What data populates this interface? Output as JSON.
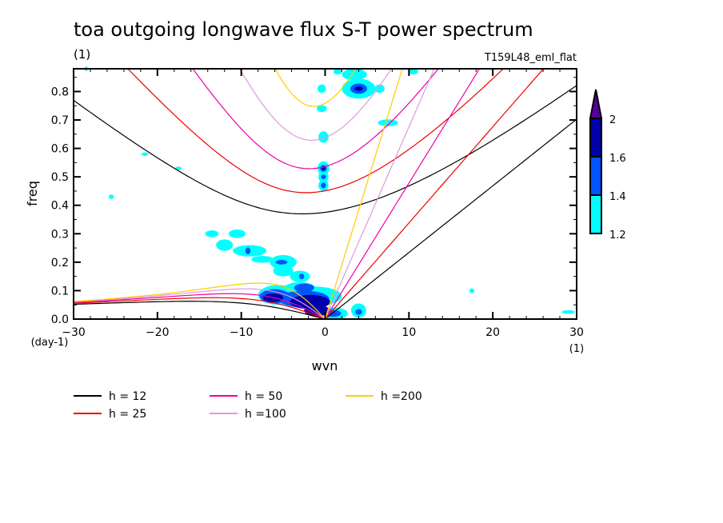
{
  "chart_data": {
    "type": "heatmap",
    "title": "toa outgoing longwave flux S-T power spectrum",
    "subtitle_left": "(1)",
    "subtitle_right": "T159L48_eml_flat",
    "xlabel": "wvn",
    "ylabel": "freq",
    "x_unit": "(1)",
    "y_unit": "(day-1)",
    "xlim": [
      -30,
      30
    ],
    "ylim": [
      0.0,
      0.88
    ],
    "x_ticks": [
      -30,
      -20,
      -10,
      0,
      10,
      20,
      30
    ],
    "x_tick_labels": [
      "−30",
      "−20",
      "−10",
      "0",
      "10",
      "20",
      "30"
    ],
    "y_ticks": [
      0.0,
      0.1,
      0.2,
      0.3,
      0.4,
      0.5,
      0.6,
      0.7,
      0.8
    ],
    "y_tick_labels": [
      "0.0",
      "0.1",
      "0.2",
      "0.3",
      "0.4",
      "0.5",
      "0.6",
      "0.7",
      "0.8"
    ],
    "colorbar": {
      "levels": [
        1.2,
        1.4,
        1.6,
        2
      ],
      "level_labels": [
        "1.2",
        "1.4",
        "1.6",
        "2"
      ],
      "colors": [
        "#00ffff",
        "#0055ff",
        "#0000aa",
        "#550099"
      ],
      "extend": "max"
    },
    "contour_blobs": [
      {
        "x": -1.5,
        "y": 0.08,
        "rx": 3.5,
        "ry": 0.035,
        "level": 1
      },
      {
        "x": -2.5,
        "y": 0.07,
        "rx": 3.0,
        "ry": 0.03,
        "level": 2
      },
      {
        "x": -1.8,
        "y": 0.06,
        "rx": 2.4,
        "ry": 0.025,
        "level": 3
      },
      {
        "x": -5.5,
        "y": 0.085,
        "rx": 2.5,
        "ry": 0.035,
        "level": 1
      },
      {
        "x": -6.0,
        "y": 0.08,
        "rx": 1.8,
        "ry": 0.025,
        "level": 2
      },
      {
        "x": -6.2,
        "y": 0.075,
        "rx": 1.2,
        "ry": 0.015,
        "level": 3
      },
      {
        "x": -3.0,
        "y": 0.11,
        "rx": 1.8,
        "ry": 0.02,
        "level": 1
      },
      {
        "x": -2.5,
        "y": 0.11,
        "rx": 1.2,
        "ry": 0.015,
        "level": 2
      },
      {
        "x": -1.0,
        "y": 0.03,
        "rx": 1.5,
        "ry": 0.02,
        "level": 3
      },
      {
        "x": 1.2,
        "y": 0.02,
        "rx": 1.5,
        "ry": 0.02,
        "level": 1
      },
      {
        "x": 1.0,
        "y": 0.02,
        "rx": 0.9,
        "ry": 0.012,
        "level": 2
      },
      {
        "x": 4.0,
        "y": 0.03,
        "rx": 0.9,
        "ry": 0.025,
        "level": 1
      },
      {
        "x": 4.0,
        "y": 0.025,
        "rx": 0.4,
        "ry": 0.01,
        "level": 2
      },
      {
        "x": -5.0,
        "y": 0.2,
        "rx": 1.6,
        "ry": 0.025,
        "level": 1
      },
      {
        "x": -5.2,
        "y": 0.2,
        "rx": 0.7,
        "ry": 0.008,
        "level": 2
      },
      {
        "x": -5.0,
        "y": 0.17,
        "rx": 1.2,
        "ry": 0.02,
        "level": 1
      },
      {
        "x": -9.0,
        "y": 0.24,
        "rx": 2.0,
        "ry": 0.02,
        "level": 1
      },
      {
        "x": -9.2,
        "y": 0.24,
        "rx": 0.3,
        "ry": 0.012,
        "level": 2
      },
      {
        "x": -10.5,
        "y": 0.3,
        "rx": 1.0,
        "ry": 0.015,
        "level": 1
      },
      {
        "x": -12.0,
        "y": 0.26,
        "rx": 1.0,
        "ry": 0.02,
        "level": 1
      },
      {
        "x": -13.5,
        "y": 0.3,
        "rx": 0.8,
        "ry": 0.012,
        "level": 1
      },
      {
        "x": -7.5,
        "y": 0.21,
        "rx": 1.3,
        "ry": 0.012,
        "level": 1
      },
      {
        "x": -3.0,
        "y": 0.15,
        "rx": 1.2,
        "ry": 0.02,
        "level": 1
      },
      {
        "x": -2.8,
        "y": 0.15,
        "rx": 0.3,
        "ry": 0.01,
        "level": 2
      },
      {
        "x": -0.2,
        "y": 0.47,
        "rx": 0.6,
        "ry": 0.02,
        "level": 1
      },
      {
        "x": -0.2,
        "y": 0.47,
        "rx": 0.3,
        "ry": 0.01,
        "level": 2
      },
      {
        "x": -0.2,
        "y": 0.5,
        "rx": 0.6,
        "ry": 0.02,
        "level": 1
      },
      {
        "x": -0.2,
        "y": 0.5,
        "rx": 0.3,
        "ry": 0.008,
        "level": 2
      },
      {
        "x": -0.2,
        "y": 0.53,
        "rx": 0.7,
        "ry": 0.025,
        "level": 1
      },
      {
        "x": -0.2,
        "y": 0.53,
        "rx": 0.4,
        "ry": 0.012,
        "level": 2
      },
      {
        "x": -0.2,
        "y": 0.53,
        "rx": 0.2,
        "ry": 0.005,
        "level": 3
      },
      {
        "x": -0.2,
        "y": 0.64,
        "rx": 0.6,
        "ry": 0.02,
        "level": 1
      },
      {
        "x": -0.4,
        "y": 0.81,
        "rx": 0.5,
        "ry": 0.015,
        "level": 1
      },
      {
        "x": -0.4,
        "y": 0.74,
        "rx": 0.6,
        "ry": 0.012,
        "level": 1
      },
      {
        "x": 4.0,
        "y": 0.81,
        "rx": 2.0,
        "ry": 0.035,
        "level": 1
      },
      {
        "x": 4.0,
        "y": 0.81,
        "rx": 1.0,
        "ry": 0.018,
        "level": 2
      },
      {
        "x": 4.0,
        "y": 0.81,
        "rx": 0.5,
        "ry": 0.008,
        "level": 3
      },
      {
        "x": 3.5,
        "y": 0.86,
        "rx": 1.5,
        "ry": 0.02,
        "level": 1
      },
      {
        "x": 7.5,
        "y": 0.69,
        "rx": 1.2,
        "ry": 0.012,
        "level": 1
      },
      {
        "x": 6.5,
        "y": 0.81,
        "rx": 0.6,
        "ry": 0.015,
        "level": 1
      },
      {
        "x": 10.5,
        "y": 0.87,
        "rx": 0.6,
        "ry": 0.01,
        "level": 1
      },
      {
        "x": 1.5,
        "y": 0.87,
        "rx": 0.5,
        "ry": 0.01,
        "level": 1
      },
      {
        "x": -25.5,
        "y": 0.43,
        "rx": 0.3,
        "ry": 0.008,
        "level": 1
      },
      {
        "x": -21.5,
        "y": 0.58,
        "rx": 0.4,
        "ry": 0.006,
        "level": 1
      },
      {
        "x": -17.5,
        "y": 0.53,
        "rx": 0.4,
        "ry": 0.006,
        "level": 1
      },
      {
        "x": -28.5,
        "y": 0.88,
        "rx": 0.2,
        "ry": 0.008,
        "level": 1
      },
      {
        "x": 29.0,
        "y": 0.025,
        "rx": 0.8,
        "ry": 0.006,
        "level": 1
      },
      {
        "x": 17.5,
        "y": 0.1,
        "rx": 0.3,
        "ry": 0.008,
        "level": 1
      }
    ],
    "dispersion_curves": {
      "equivalent_depths": [
        12,
        25,
        50,
        100,
        200
      ],
      "families": [
        "kelvin",
        "inertio-gravity n=1",
        "rossby n=1"
      ]
    },
    "legend": {
      "placement": "bottom-left",
      "entries": [
        {
          "label": "h = 12",
          "color": "#000000"
        },
        {
          "label": "h = 25",
          "color": "#ee0000"
        },
        {
          "label": "h = 50",
          "color": "#ee00aa"
        },
        {
          "label": "h =100",
          "color": "#dd99dd"
        },
        {
          "label": "h =200",
          "color": "#ffcc00"
        }
      ]
    }
  }
}
